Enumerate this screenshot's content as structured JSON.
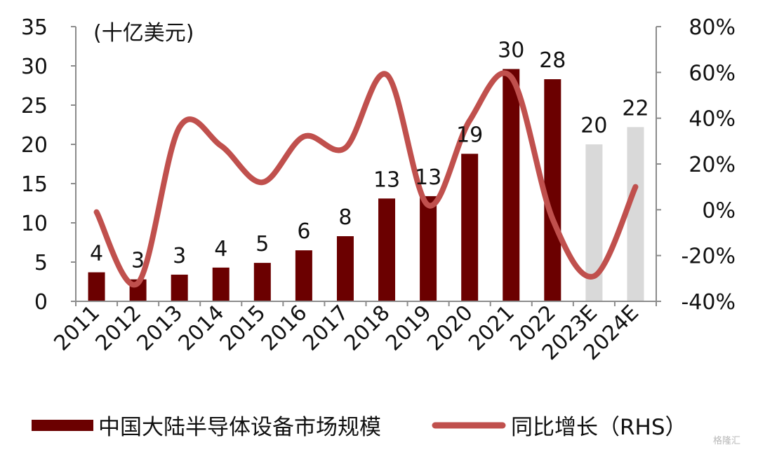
{
  "chart_data": {
    "type": "bar",
    "unit_label": "(十亿美元)",
    "categories": [
      "2011",
      "2012",
      "2013",
      "2014",
      "2015",
      "2016",
      "2017",
      "2018",
      "2019",
      "2020",
      "2021",
      "2022",
      "2023E",
      "2024E"
    ],
    "series": [
      {
        "name": "中国大陆半导体设备市场规模",
        "type": "bar",
        "axis": "left",
        "values": [
          3.7,
          2.8,
          3.4,
          4.3,
          4.9,
          6.5,
          8.3,
          13.1,
          13.4,
          18.8,
          29.6,
          28.3,
          20.0,
          22.2
        ],
        "data_labels": [
          "4",
          "3",
          "3",
          "4",
          "5",
          "6",
          "8",
          "13",
          "13",
          "19",
          "30",
          "28",
          "20",
          "22"
        ],
        "colors": [
          "#6b0000",
          "#6b0000",
          "#6b0000",
          "#6b0000",
          "#6b0000",
          "#6b0000",
          "#6b0000",
          "#6b0000",
          "#6b0000",
          "#6b0000",
          "#6b0000",
          "#6b0000",
          "#d9d9d9",
          "#d9d9d9"
        ]
      },
      {
        "name": "同比增长（RHS）",
        "type": "line",
        "axis": "right",
        "values": [
          -0.01,
          -0.32,
          0.36,
          0.28,
          0.12,
          0.32,
          0.27,
          0.59,
          0.02,
          0.39,
          0.58,
          -0.04,
          -0.29,
          0.1
        ],
        "color": "#c0504d"
      }
    ],
    "ylim_left": [
      0,
      35
    ],
    "yticks_left": [
      "0",
      "5",
      "10",
      "15",
      "20",
      "25",
      "30",
      "35"
    ],
    "ylim_right": [
      -0.4,
      0.8
    ],
    "yticks_right": [
      "-40%",
      "-20%",
      "0%",
      "20%",
      "40%",
      "60%",
      "80%"
    ],
    "grid": false,
    "legend_position": "bottom",
    "legend": [
      {
        "label": "中国大陆半导体设备市场规模",
        "kind": "bar",
        "color": "#6b0000"
      },
      {
        "label": "同比增长（RHS）",
        "kind": "line",
        "color": "#c0504d"
      }
    ],
    "axis_color": "#8c8c8c"
  },
  "watermark": "格隆汇"
}
